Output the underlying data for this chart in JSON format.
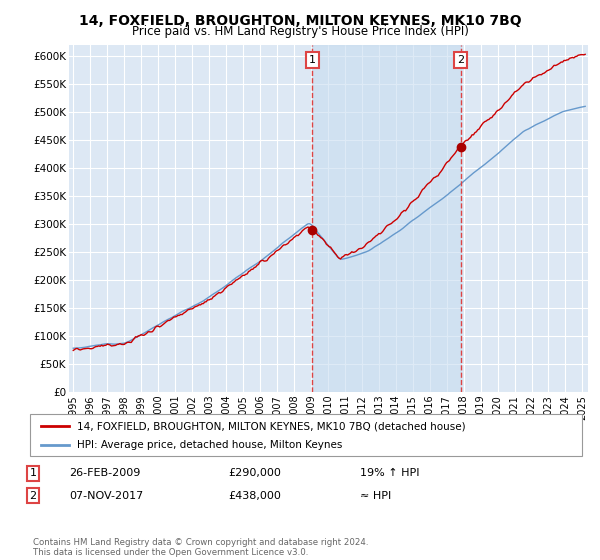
{
  "title": "14, FOXFIELD, BROUGHTON, MILTON KEYNES, MK10 7BQ",
  "subtitle": "Price paid vs. HM Land Registry's House Price Index (HPI)",
  "title_fontsize": 10,
  "subtitle_fontsize": 8.5,
  "ylabel_ticks": [
    "£0",
    "£50K",
    "£100K",
    "£150K",
    "£200K",
    "£250K",
    "£300K",
    "£350K",
    "£400K",
    "£450K",
    "£500K",
    "£550K",
    "£600K"
  ],
  "ytick_values": [
    0,
    50000,
    100000,
    150000,
    200000,
    250000,
    300000,
    350000,
    400000,
    450000,
    500000,
    550000,
    600000
  ],
  "ylim": [
    0,
    620000
  ],
  "sale1_price": 290000,
  "sale2_price": 438000,
  "line_color_property": "#cc0000",
  "line_color_hpi": "#6699cc",
  "shade_color": "#c8ddf0",
  "vline_color": "#dd4444",
  "dot_color": "#aa0000",
  "legend_property": "14, FOXFIELD, BROUGHTON, MILTON KEYNES, MK10 7BQ (detached house)",
  "legend_hpi": "HPI: Average price, detached house, Milton Keynes",
  "footer": "Contains HM Land Registry data © Crown copyright and database right 2024.\nThis data is licensed under the Open Government Licence v3.0.",
  "background_color": "#dde8f4",
  "grid_color": "#ffffff"
}
